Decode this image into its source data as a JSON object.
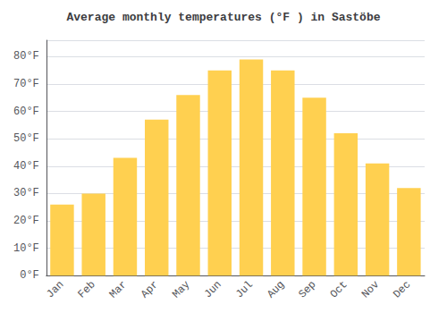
{
  "chart_data": {
    "type": "bar",
    "title": "Average monthly temperatures (°F ) in Sastöbe",
    "categories": [
      "Jan",
      "Feb",
      "Mar",
      "Apr",
      "May",
      "Jun",
      "Jul",
      "Aug",
      "Sep",
      "Oct",
      "Nov",
      "Dec"
    ],
    "values": [
      26,
      30,
      43,
      57,
      66,
      75,
      79,
      75,
      65,
      52,
      41,
      32
    ],
    "color": "#FFD050",
    "ylim": [
      0,
      86
    ],
    "yticks": [
      {
        "value": 0,
        "label": "0°F"
      },
      {
        "value": 10,
        "label": "10°F"
      },
      {
        "value": 20,
        "label": "20°F"
      },
      {
        "value": 30,
        "label": "30°F"
      },
      {
        "value": 40,
        "label": "40°F"
      },
      {
        "value": 50,
        "label": "50°F"
      },
      {
        "value": 60,
        "label": "60°F"
      },
      {
        "value": 70,
        "label": "70°F"
      },
      {
        "value": 80,
        "label": "80°F"
      }
    ],
    "grid": true
  }
}
